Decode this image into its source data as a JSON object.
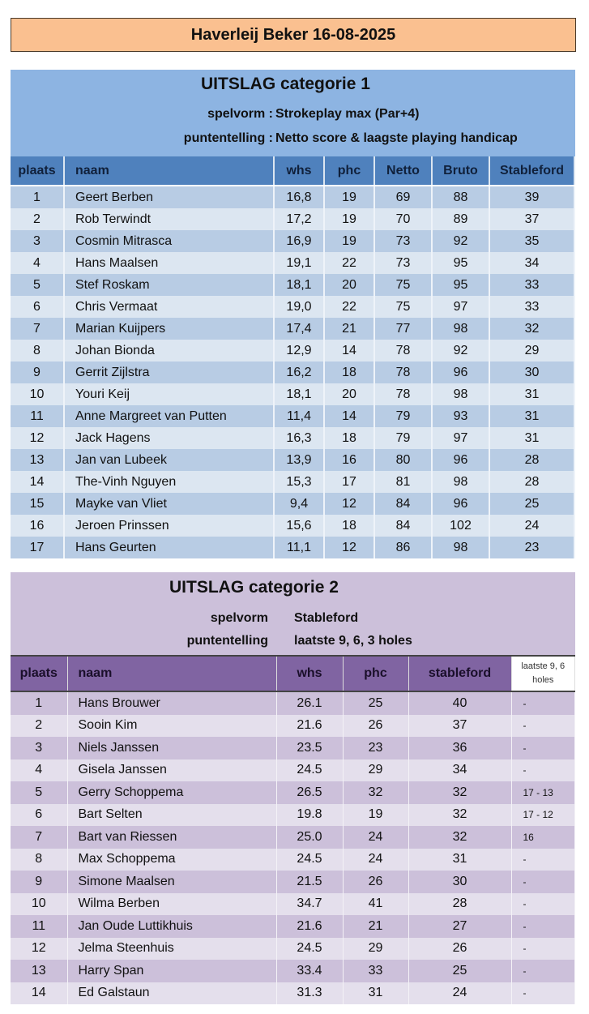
{
  "banner": "Haverleij Beker  16-08-2025",
  "cat1": {
    "title": "UITSLAG categorie 1",
    "spelvorm_label": "spelvorm :",
    "spelvorm": "Strokeplay max (Par+4)",
    "punt_label": "puntentelling :",
    "punt": "Netto score & laagste playing handicap",
    "headers": [
      "plaats",
      "naam",
      "whs",
      "phc",
      "Netto",
      "Bruto",
      "Stableford"
    ],
    "rows": [
      [
        "1",
        "Geert Berben",
        "16,8",
        "19",
        "69",
        "88",
        "39"
      ],
      [
        "2",
        "Rob Terwindt",
        "17,2",
        "19",
        "70",
        "89",
        "37"
      ],
      [
        "3",
        "Cosmin Mitrasca",
        "16,9",
        "19",
        "73",
        "92",
        "35"
      ],
      [
        "4",
        "Hans Maalsen",
        "19,1",
        "22",
        "73",
        "95",
        "34"
      ],
      [
        "5",
        "Stef Roskam",
        "18,1",
        "20",
        "75",
        "95",
        "33"
      ],
      [
        "6",
        "Chris Vermaat",
        "19,0",
        "22",
        "75",
        "97",
        "33"
      ],
      [
        "7",
        "Marian Kuijpers",
        "17,4",
        "21",
        "77",
        "98",
        "32"
      ],
      [
        "8",
        "Johan Bionda",
        "12,9",
        "14",
        "78",
        "92",
        "29"
      ],
      [
        "9",
        "Gerrit Zijlstra",
        "16,2",
        "18",
        "78",
        "96",
        "30"
      ],
      [
        "10",
        "Youri Keij",
        "18,1",
        "20",
        "78",
        "98",
        "31"
      ],
      [
        "11",
        "Anne Margreet van Putten",
        "11,4",
        "14",
        "79",
        "93",
        "31"
      ],
      [
        "12",
        "Jack Hagens",
        "16,3",
        "18",
        "79",
        "97",
        "31"
      ],
      [
        "13",
        "Jan van Lubeek",
        "13,9",
        "16",
        "80",
        "96",
        "28"
      ],
      [
        "14",
        "The-Vinh Nguyen",
        "15,3",
        "17",
        "81",
        "98",
        "28"
      ],
      [
        "15",
        "Mayke van Vliet",
        "9,4",
        "12",
        "84",
        "96",
        "25"
      ],
      [
        "16",
        "Jeroen Prinssen",
        "15,6",
        "18",
        "84",
        "102",
        "24"
      ],
      [
        "17",
        "Hans Geurten",
        "11,1",
        "12",
        "86",
        "98",
        "23"
      ]
    ]
  },
  "cat2": {
    "title": "UITSLAG categorie 2",
    "spelvorm_label": "spelvorm",
    "spelvorm": "Stableford",
    "punt_label": "puntentelling",
    "punt": "laatste 9, 6, 3 holes",
    "headers": [
      "plaats",
      "naam",
      "whs",
      "phc",
      "stableford",
      "laatste 9, 6 holes"
    ],
    "rows": [
      [
        "1",
        "Hans Brouwer",
        "26.1",
        "25",
        "40",
        "-"
      ],
      [
        "2",
        "Sooin Kim",
        "21.6",
        "26",
        "37",
        "-"
      ],
      [
        "3",
        "Niels Janssen",
        "23.5",
        "23",
        "36",
        "-"
      ],
      [
        "4",
        "Gisela Janssen",
        "24.5",
        "29",
        "34",
        "-"
      ],
      [
        "5",
        "Gerry Schoppema",
        "26.5",
        "32",
        "32",
        "17 - 13"
      ],
      [
        "6",
        "Bart Selten",
        "19.8",
        "19",
        "32",
        "17 - 12"
      ],
      [
        "7",
        "Bart van Riessen",
        "25.0",
        "24",
        "32",
        "16"
      ],
      [
        "8",
        "Max Schoppema",
        "24.5",
        "24",
        "31",
        "-"
      ],
      [
        "9",
        "Simone Maalsen",
        "21.5",
        "26",
        "30",
        "-"
      ],
      [
        "10",
        "Wilma Berben",
        "34.7",
        "41",
        "28",
        "-"
      ],
      [
        "11",
        "Jan Oude Luttikhuis",
        "21.6",
        "21",
        "27",
        "-"
      ],
      [
        "12",
        "Jelma Steenhuis",
        "24.5",
        "29",
        "26",
        "-"
      ],
      [
        "13",
        "Harry Span",
        "33.4",
        "33",
        "25",
        "-"
      ],
      [
        "14",
        "Ed Galstaun",
        "31.3",
        "31",
        "24",
        "-"
      ]
    ]
  }
}
